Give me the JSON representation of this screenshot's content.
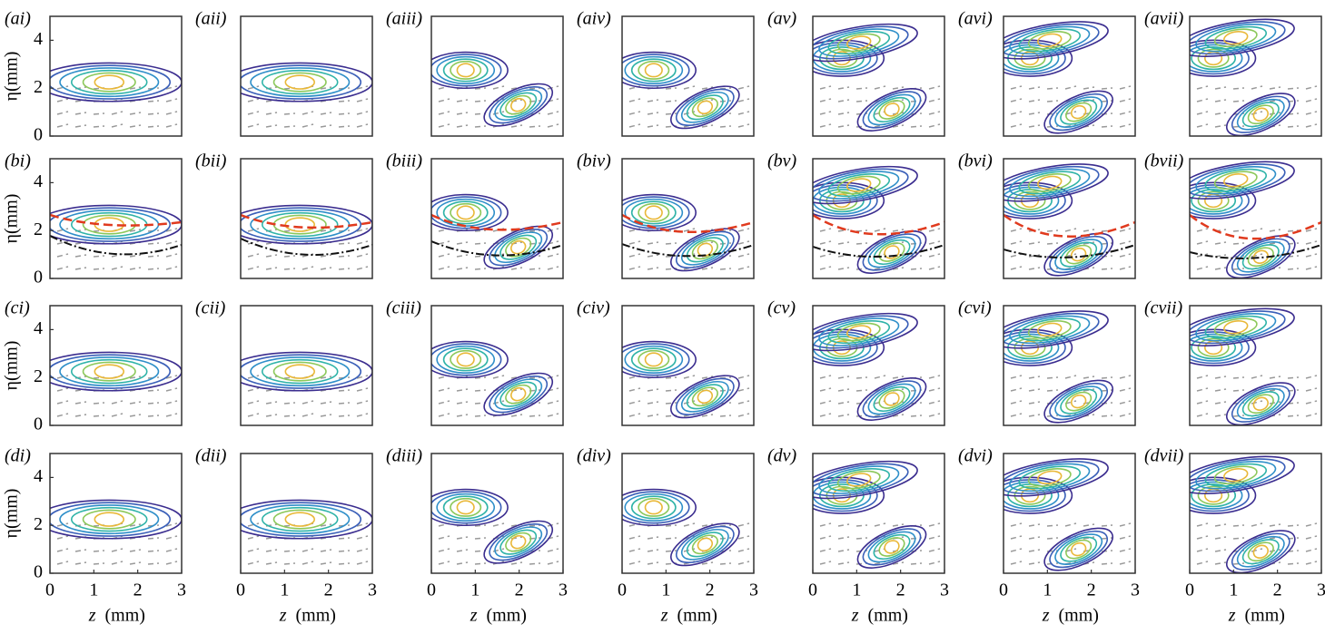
{
  "panels": {
    "labels": [
      [
        "(ai)",
        "(aii)",
        "(aiii)",
        "(aiv)",
        "(av)",
        "(avi)",
        "(avii)"
      ],
      [
        "(bi)",
        "(bii)",
        "(biii)",
        "(biv)",
        "(bv)",
        "(bvi)",
        "(bvii)"
      ],
      [
        "(ci)",
        "(cii)",
        "(ciii)",
        "(civ)",
        "(cv)",
        "(cvi)",
        "(cvii)"
      ],
      [
        "(di)",
        "(dii)",
        "(diii)",
        "(div)",
        "(dv)",
        "(dvi)",
        "(dvii)"
      ]
    ]
  },
  "y_axis": {
    "label": "η(mm)",
    "ticks": [
      0,
      2,
      4
    ]
  },
  "x_axis": {
    "symbol": "z",
    "unit": "(mm)",
    "ticks": [
      0,
      1,
      2,
      3
    ]
  }
}
